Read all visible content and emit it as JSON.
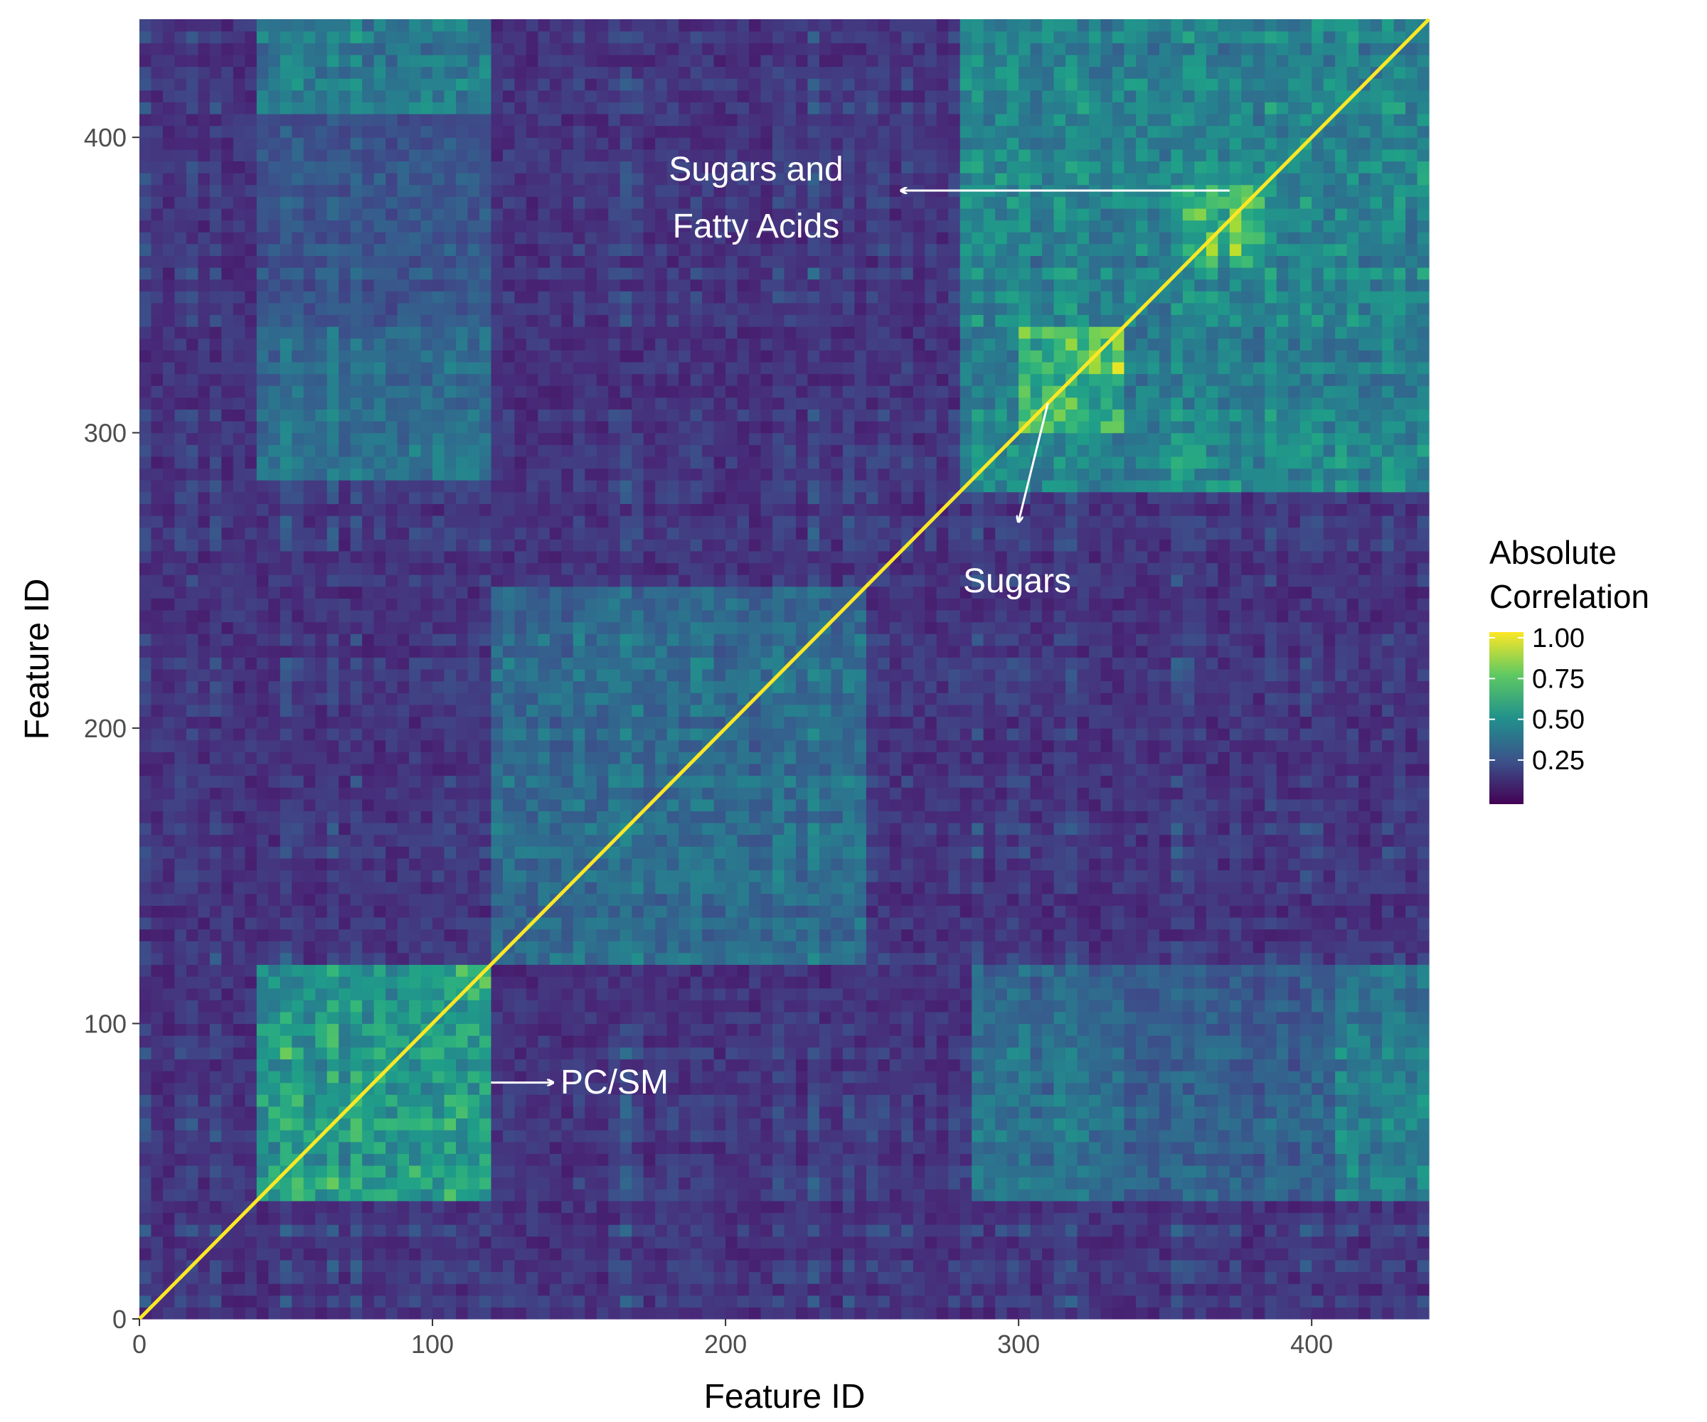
{
  "chart_data": {
    "type": "heatmap",
    "title": "",
    "xlabel": "Feature ID",
    "ylabel": "Feature ID",
    "xlim": [
      0,
      440
    ],
    "ylim": [
      0,
      440
    ],
    "x_ticks": [
      0,
      100,
      200,
      300,
      400
    ],
    "y_ticks": [
      0,
      100,
      200,
      300,
      400
    ],
    "x_tick_labels": [
      "0",
      "100",
      "200",
      "300",
      "400"
    ],
    "y_tick_labels": [
      "0",
      "100",
      "200",
      "300",
      "400"
    ],
    "grid": false,
    "colormap": "viridis",
    "value_range": [
      0,
      1
    ],
    "legend": {
      "title_line1": "Absolute",
      "title_line2": "Correlation",
      "ticks": [
        1.0,
        0.75,
        0.5,
        0.25
      ],
      "tick_labels": [
        "1.00",
        "0.75",
        "0.50",
        "0.25"
      ],
      "placement": "right"
    },
    "blocks": [
      {
        "x": [
          40,
          120
        ],
        "y": [
          40,
          120
        ],
        "level": 0.62
      },
      {
        "x": [
          108,
          120
        ],
        "y": [
          108,
          120
        ],
        "level": 0.85
      },
      {
        "x": [
          120,
          250
        ],
        "y": [
          120,
          250
        ],
        "level": 0.42
      },
      {
        "x": [
          280,
          440
        ],
        "y": [
          280,
          440
        ],
        "level": 0.52
      },
      {
        "x": [
          300,
          335
        ],
        "y": [
          300,
          335
        ],
        "level": 0.82
      },
      {
        "x": [
          325,
          335
        ],
        "y": [
          320,
          335
        ],
        "level": 0.98
      },
      {
        "x": [
          355,
          385
        ],
        "y": [
          355,
          385
        ],
        "level": 0.78
      },
      {
        "x": [
          40,
          120
        ],
        "y": [
          285,
          335
        ],
        "level": 0.42
      },
      {
        "x": [
          285,
          335
        ],
        "y": [
          40,
          120
        ],
        "level": 0.42
      },
      {
        "x": [
          40,
          120
        ],
        "y": [
          410,
          440
        ],
        "level": 0.48
      },
      {
        "x": [
          410,
          440
        ],
        "y": [
          40,
          120
        ],
        "level": 0.48
      },
      {
        "x": [
          285,
          440
        ],
        "y": [
          40,
          120
        ],
        "level": 0.35
      },
      {
        "x": [
          40,
          120
        ],
        "y": [
          285,
          440
        ],
        "level": 0.3
      }
    ],
    "diagonal_value": 1.0,
    "annotations": [
      {
        "text_line1": "Sugars and",
        "text_line2": "Fatty Acids",
        "arrow_from": [
          372,
          382
        ],
        "arrow_to": [
          260,
          382
        ]
      },
      {
        "text_line1": "Sugars",
        "text_line2": "",
        "arrow_from": [
          310,
          310
        ],
        "arrow_to": [
          300,
          270
        ]
      },
      {
        "text_line1": "PC/SM",
        "text_line2": "",
        "arrow_from": [
          120,
          80
        ],
        "arrow_to": [
          141,
          80
        ]
      }
    ]
  }
}
